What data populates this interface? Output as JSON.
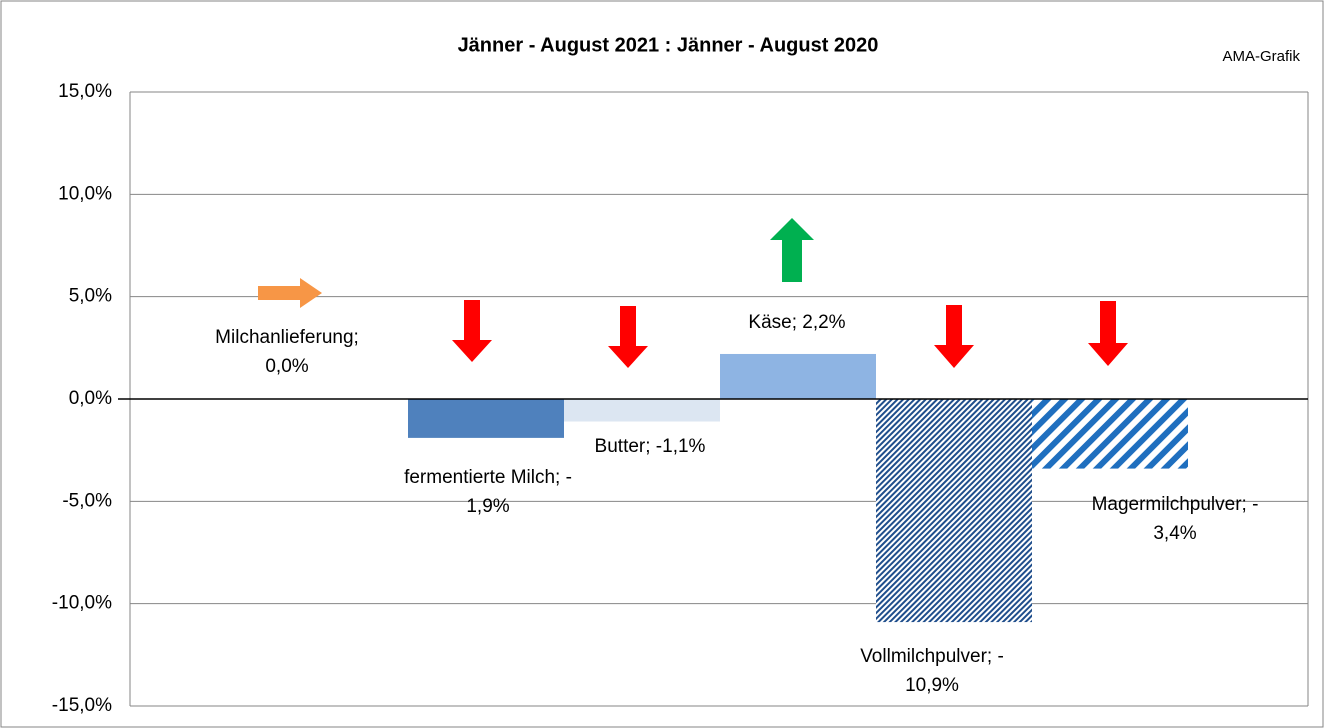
{
  "chart_data": {
    "type": "bar",
    "title": "Jänner - August 2021 : Jänner - August 2020",
    "note": "AMA-Grafik",
    "values": [
      0.0,
      -1.9,
      -1.1,
      2.2,
      -10.9,
      -3.4
    ],
    "value_labels": [
      [
        "Milchanlieferung;",
        "0,0%"
      ],
      [
        "fermentierte Milch; -",
        "1,9%"
      ],
      [
        "Butter; -1,1%"
      ],
      [
        "Käse; 2,2%"
      ],
      [
        "Vollmilchpulver; -",
        "10,9%"
      ],
      [
        "Magermilchpulver; -",
        "3,4%"
      ]
    ],
    "colors": [
      "#f79646",
      "#4f81bd",
      "#dce6f2",
      "#8eb4e3",
      "url(#hatchFine)",
      "url(#hatchWide)"
    ],
    "ylim": [
      -15,
      15
    ],
    "yticks": [
      {
        "value": -15,
        "label": "-15,0%"
      },
      {
        "value": -10,
        "label": "-10,0%"
      },
      {
        "value": -5,
        "label": "-5,0%"
      },
      {
        "value": 0,
        "label": "0,0%"
      },
      {
        "value": 5,
        "label": "5,0%"
      },
      {
        "value": 10,
        "label": "10,0%"
      },
      {
        "value": 15,
        "label": "15,0%"
      }
    ],
    "grid": true
  }
}
